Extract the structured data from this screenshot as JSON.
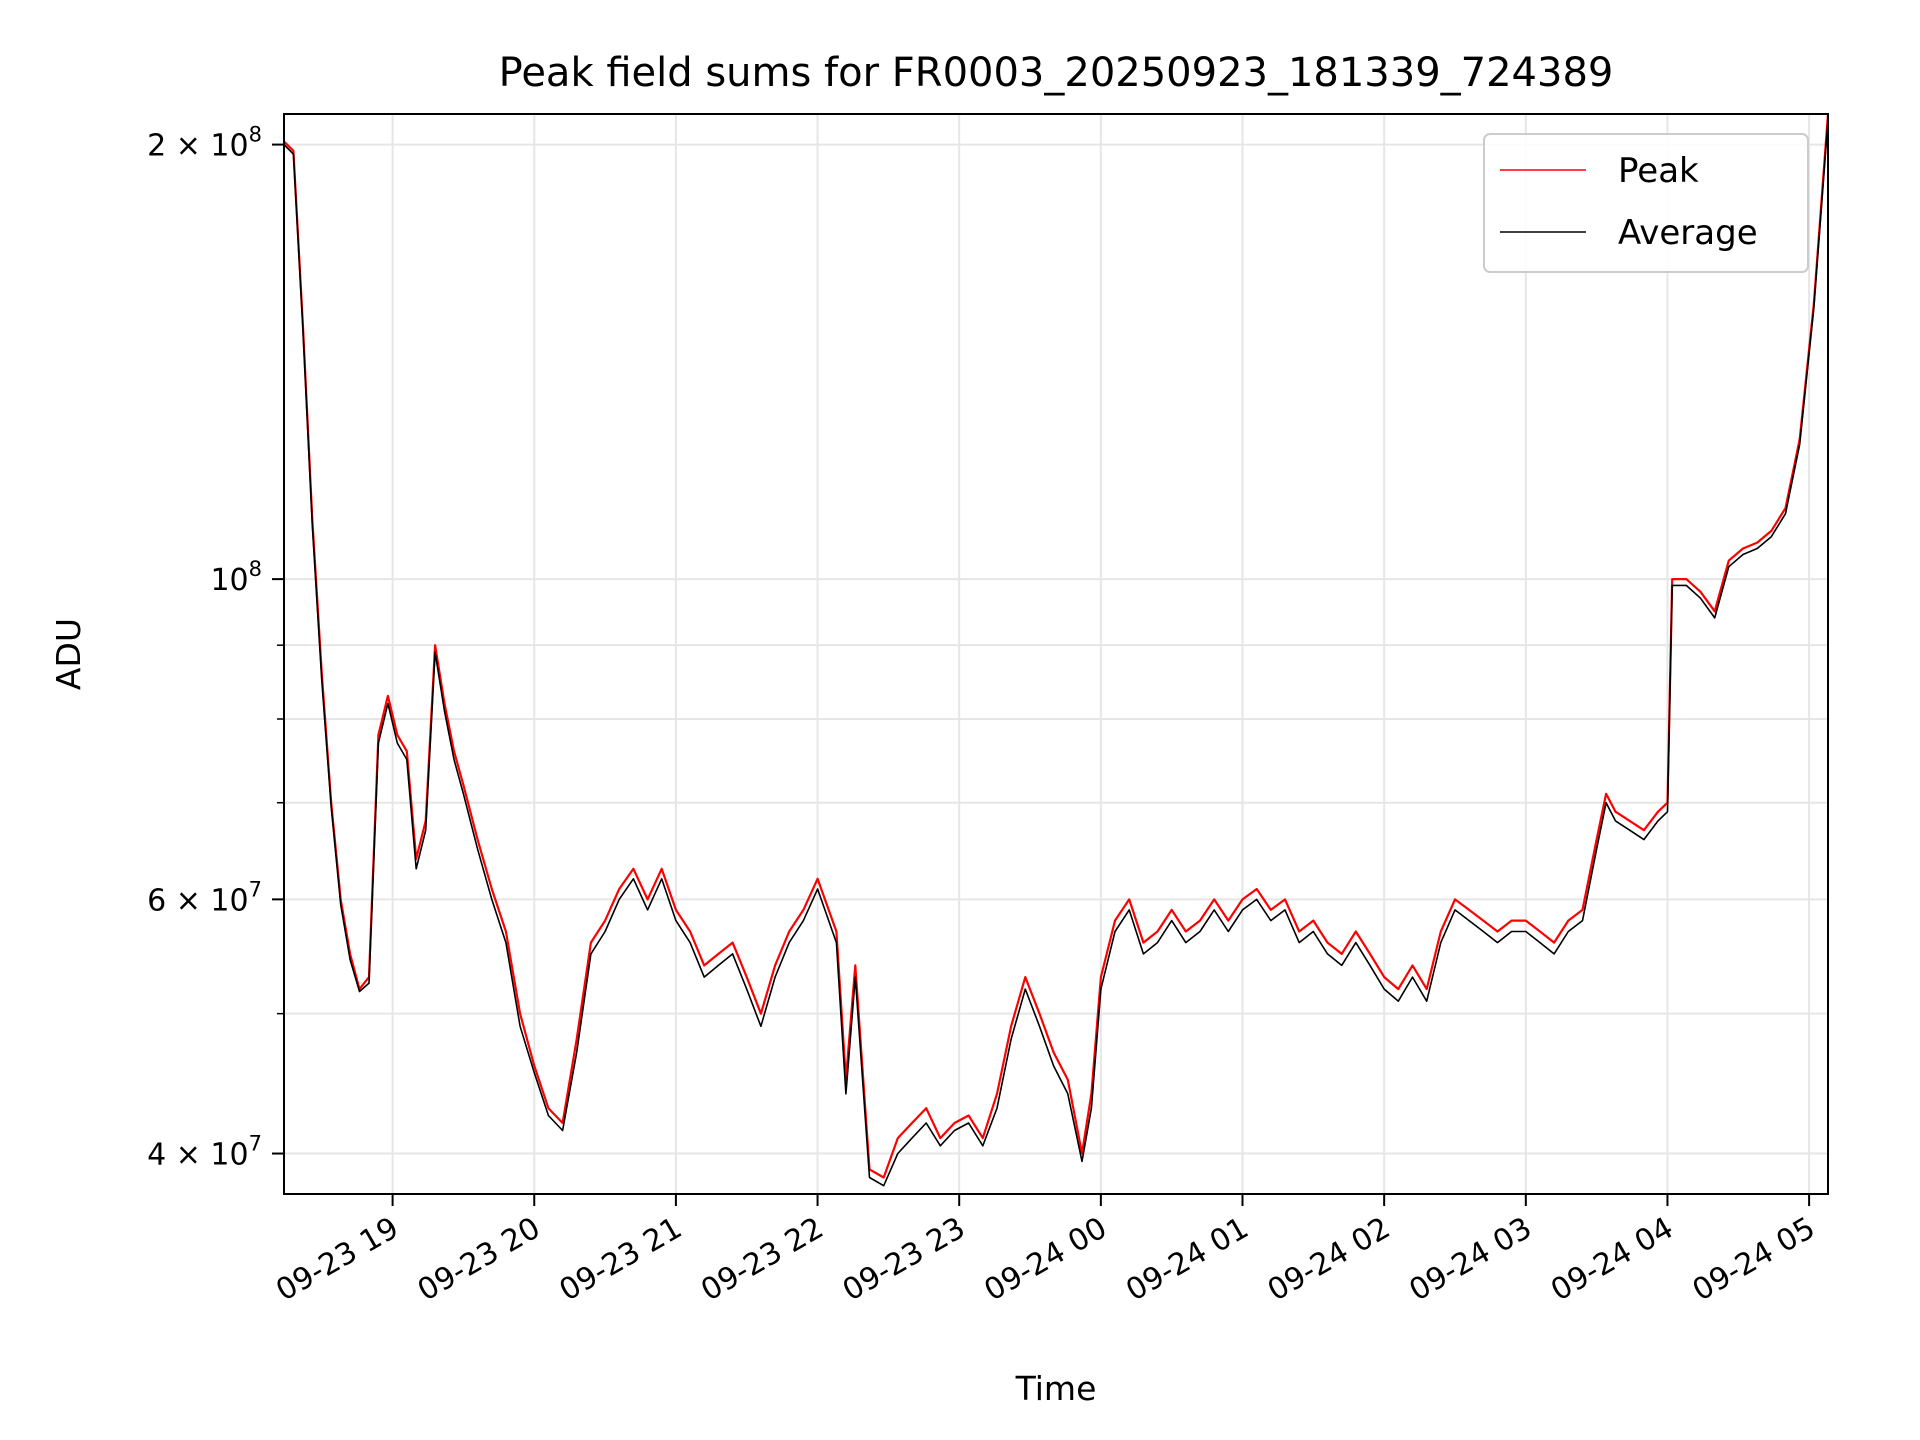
{
  "chart_data": {
    "type": "line",
    "title": "Peak field sums for FR0003_20250923_181339_724389",
    "xlabel": "Time",
    "ylabel": "ADU",
    "yscale": "log",
    "ylim": [
      37500000,
      210000000
    ],
    "xlim": [
      "2025-09-23 18:14",
      "2025-09-24 05:08"
    ],
    "grid": true,
    "legend_position": "top-right",
    "x_ticks": [
      "09-23 19",
      "09-23 20",
      "09-23 21",
      "09-23 22",
      "09-23 23",
      "09-24 00",
      "09-24 01",
      "09-24 02",
      "09-24 03",
      "09-24 04",
      "09-24 05"
    ],
    "x_tick_values": [
      "2025-09-23 19:00",
      "2025-09-23 20:00",
      "2025-09-23 21:00",
      "2025-09-23 22:00",
      "2025-09-23 23:00",
      "2025-09-24 00:00",
      "2025-09-24 01:00",
      "2025-09-24 02:00",
      "2025-09-24 03:00",
      "2025-09-24 04:00",
      "2025-09-24 05:00"
    ],
    "y_major_ticks": [
      {
        "value": 40000000,
        "mantissa": "4",
        "exponent": "7"
      },
      {
        "value": 60000000,
        "mantissa": "6",
        "exponent": "7"
      },
      {
        "value": 100000000,
        "mantissa": "",
        "exponent": "8"
      },
      {
        "value": 200000000,
        "mantissa": "2",
        "exponent": "8"
      }
    ],
    "y_minor_ticks": [
      50000000,
      70000000,
      80000000,
      90000000
    ],
    "series": [
      {
        "name": "Peak",
        "color": "#ff0000",
        "x": [
          "2025-09-23 18:14",
          "2025-09-23 18:18",
          "2025-09-23 18:22",
          "2025-09-23 18:26",
          "2025-09-23 18:30",
          "2025-09-23 18:34",
          "2025-09-23 18:38",
          "2025-09-23 18:42",
          "2025-09-23 18:46",
          "2025-09-23 18:50",
          "2025-09-23 18:54",
          "2025-09-23 18:58",
          "2025-09-23 19:02",
          "2025-09-23 19:06",
          "2025-09-23 19:10",
          "2025-09-23 19:14",
          "2025-09-23 19:18",
          "2025-09-23 19:22",
          "2025-09-23 19:26",
          "2025-09-23 19:30",
          "2025-09-23 19:36",
          "2025-09-23 19:42",
          "2025-09-23 19:48",
          "2025-09-23 19:54",
          "2025-09-23 20:00",
          "2025-09-23 20:06",
          "2025-09-23 20:12",
          "2025-09-23 20:18",
          "2025-09-23 20:24",
          "2025-09-23 20:30",
          "2025-09-23 20:36",
          "2025-09-23 20:42",
          "2025-09-23 20:48",
          "2025-09-23 20:54",
          "2025-09-23 21:00",
          "2025-09-23 21:06",
          "2025-09-23 21:12",
          "2025-09-23 21:18",
          "2025-09-23 21:24",
          "2025-09-23 21:30",
          "2025-09-23 21:36",
          "2025-09-23 21:42",
          "2025-09-23 21:48",
          "2025-09-23 21:54",
          "2025-09-23 22:00",
          "2025-09-23 22:08",
          "2025-09-23 22:12",
          "2025-09-23 22:16",
          "2025-09-23 22:22",
          "2025-09-23 22:28",
          "2025-09-23 22:34",
          "2025-09-23 22:40",
          "2025-09-23 22:46",
          "2025-09-23 22:52",
          "2025-09-23 22:58",
          "2025-09-23 23:04",
          "2025-09-23 23:10",
          "2025-09-23 23:16",
          "2025-09-23 23:22",
          "2025-09-23 23:28",
          "2025-09-23 23:34",
          "2025-09-23 23:40",
          "2025-09-23 23:46",
          "2025-09-23 23:52",
          "2025-09-23 23:56",
          "2025-09-24 00:00",
          "2025-09-24 00:06",
          "2025-09-24 00:12",
          "2025-09-24 00:18",
          "2025-09-24 00:24",
          "2025-09-24 00:30",
          "2025-09-24 00:36",
          "2025-09-24 00:42",
          "2025-09-24 00:48",
          "2025-09-24 00:54",
          "2025-09-24 01:00",
          "2025-09-24 01:06",
          "2025-09-24 01:12",
          "2025-09-24 01:18",
          "2025-09-24 01:24",
          "2025-09-24 01:30",
          "2025-09-24 01:36",
          "2025-09-24 01:42",
          "2025-09-24 01:48",
          "2025-09-24 01:54",
          "2025-09-24 02:00",
          "2025-09-24 02:06",
          "2025-09-24 02:12",
          "2025-09-24 02:18",
          "2025-09-24 02:24",
          "2025-09-24 02:30",
          "2025-09-24 02:36",
          "2025-09-24 02:42",
          "2025-09-24 02:48",
          "2025-09-24 02:54",
          "2025-09-24 03:00",
          "2025-09-24 03:06",
          "2025-09-24 03:12",
          "2025-09-24 03:18",
          "2025-09-24 03:24",
          "2025-09-24 03:30",
          "2025-09-24 03:34",
          "2025-09-24 03:38",
          "2025-09-24 03:44",
          "2025-09-24 03:50",
          "2025-09-24 03:56",
          "2025-09-24 04:00",
          "2025-09-24 04:02",
          "2025-09-24 04:08",
          "2025-09-24 04:14",
          "2025-09-24 04:20",
          "2025-09-24 04:26",
          "2025-09-24 04:32",
          "2025-09-24 04:38",
          "2025-09-24 04:44",
          "2025-09-24 04:50",
          "2025-09-24 04:56",
          "2025-09-24 05:02",
          "2025-09-24 05:08"
        ],
        "values": [
          201000000,
          198000000,
          150000000,
          110000000,
          86000000,
          70000000,
          60000000,
          55000000,
          52000000,
          53000000,
          78000000,
          83000000,
          78000000,
          76000000,
          64000000,
          68000000,
          90000000,
          82000000,
          76000000,
          72000000,
          66000000,
          61000000,
          57000000,
          50000000,
          46000000,
          43000000,
          42000000,
          48000000,
          56000000,
          58000000,
          61000000,
          63000000,
          60000000,
          63000000,
          59000000,
          57000000,
          54000000,
          55000000,
          56000000,
          53000000,
          50000000,
          54000000,
          57000000,
          59000000,
          62000000,
          57000000,
          45000000,
          54000000,
          39000000,
          38500000,
          41000000,
          42000000,
          43000000,
          41000000,
          42000000,
          42500000,
          41000000,
          44000000,
          49000000,
          53000000,
          50000000,
          47000000,
          45000000,
          40000000,
          44000000,
          53000000,
          58000000,
          60000000,
          56000000,
          57000000,
          59000000,
          57000000,
          58000000,
          60000000,
          58000000,
          60000000,
          61000000,
          59000000,
          60000000,
          57000000,
          58000000,
          56000000,
          55000000,
          57000000,
          55000000,
          53000000,
          52000000,
          54000000,
          52000000,
          57000000,
          60000000,
          59000000,
          58000000,
          57000000,
          58000000,
          58000000,
          57000000,
          56000000,
          58000000,
          59000000,
          66000000,
          71000000,
          69000000,
          68000000,
          67000000,
          69000000,
          70000000,
          100000000,
          100000000,
          98000000,
          95000000,
          103000000,
          105000000,
          106000000,
          108000000,
          112000000,
          125000000,
          155000000,
          210000000
        ]
      },
      {
        "name": "Average",
        "color": "#000000",
        "x": [
          "2025-09-23 18:14",
          "2025-09-23 18:18",
          "2025-09-23 18:22",
          "2025-09-23 18:26",
          "2025-09-23 18:30",
          "2025-09-23 18:34",
          "2025-09-23 18:38",
          "2025-09-23 18:42",
          "2025-09-23 18:46",
          "2025-09-23 18:50",
          "2025-09-23 18:54",
          "2025-09-23 18:58",
          "2025-09-23 19:02",
          "2025-09-23 19:06",
          "2025-09-23 19:10",
          "2025-09-23 19:14",
          "2025-09-23 19:18",
          "2025-09-23 19:22",
          "2025-09-23 19:26",
          "2025-09-23 19:30",
          "2025-09-23 19:36",
          "2025-09-23 19:42",
          "2025-09-23 19:48",
          "2025-09-23 19:54",
          "2025-09-23 20:00",
          "2025-09-23 20:06",
          "2025-09-23 20:12",
          "2025-09-23 20:18",
          "2025-09-23 20:24",
          "2025-09-23 20:30",
          "2025-09-23 20:36",
          "2025-09-23 20:42",
          "2025-09-23 20:48",
          "2025-09-23 20:54",
          "2025-09-23 21:00",
          "2025-09-23 21:06",
          "2025-09-23 21:12",
          "2025-09-23 21:18",
          "2025-09-23 21:24",
          "2025-09-23 21:30",
          "2025-09-23 21:36",
          "2025-09-23 21:42",
          "2025-09-23 21:48",
          "2025-09-23 21:54",
          "2025-09-23 22:00",
          "2025-09-23 22:08",
          "2025-09-23 22:12",
          "2025-09-23 22:16",
          "2025-09-23 22:22",
          "2025-09-23 22:28",
          "2025-09-23 22:34",
          "2025-09-23 22:40",
          "2025-09-23 22:46",
          "2025-09-23 22:52",
          "2025-09-23 22:58",
          "2025-09-23 23:04",
          "2025-09-23 23:10",
          "2025-09-23 23:16",
          "2025-09-23 23:22",
          "2025-09-23 23:28",
          "2025-09-23 23:34",
          "2025-09-23 23:40",
          "2025-09-23 23:46",
          "2025-09-23 23:52",
          "2025-09-23 23:56",
          "2025-09-24 00:00",
          "2025-09-24 00:06",
          "2025-09-24 00:12",
          "2025-09-24 00:18",
          "2025-09-24 00:24",
          "2025-09-24 00:30",
          "2025-09-24 00:36",
          "2025-09-24 00:42",
          "2025-09-24 00:48",
          "2025-09-24 00:54",
          "2025-09-24 01:00",
          "2025-09-24 01:06",
          "2025-09-24 01:12",
          "2025-09-24 01:18",
          "2025-09-24 01:24",
          "2025-09-24 01:30",
          "2025-09-24 01:36",
          "2025-09-24 01:42",
          "2025-09-24 01:48",
          "2025-09-24 01:54",
          "2025-09-24 02:00",
          "2025-09-24 02:06",
          "2025-09-24 02:12",
          "2025-09-24 02:18",
          "2025-09-24 02:24",
          "2025-09-24 02:30",
          "2025-09-24 02:36",
          "2025-09-24 02:42",
          "2025-09-24 02:48",
          "2025-09-24 02:54",
          "2025-09-24 03:00",
          "2025-09-24 03:06",
          "2025-09-24 03:12",
          "2025-09-24 03:18",
          "2025-09-24 03:24",
          "2025-09-24 03:30",
          "2025-09-24 03:34",
          "2025-09-24 03:38",
          "2025-09-24 03:44",
          "2025-09-24 03:50",
          "2025-09-24 03:56",
          "2025-09-24 04:00",
          "2025-09-24 04:02",
          "2025-09-24 04:08",
          "2025-09-24 04:14",
          "2025-09-24 04:20",
          "2025-09-24 04:26",
          "2025-09-24 04:32",
          "2025-09-24 04:38",
          "2025-09-24 04:44",
          "2025-09-24 04:50",
          "2025-09-24 04:56",
          "2025-09-24 05:02",
          "2025-09-24 05:08"
        ],
        "values": [
          200000000,
          197000000,
          149000000,
          109000000,
          85000000,
          69500000,
          59500000,
          54500000,
          51800000,
          52500000,
          77000000,
          82000000,
          77000000,
          75000000,
          63000000,
          67000000,
          89000000,
          81000000,
          75000000,
          71000000,
          65000000,
          60000000,
          56000000,
          49000000,
          45500000,
          42500000,
          41500000,
          47000000,
          55000000,
          57000000,
          60000000,
          62000000,
          59000000,
          62000000,
          58000000,
          56000000,
          53000000,
          54000000,
          55000000,
          52000000,
          49000000,
          53000000,
          56000000,
          58000000,
          61000000,
          56000000,
          44000000,
          53000000,
          38500000,
          38000000,
          40000000,
          41000000,
          42000000,
          40500000,
          41500000,
          42000000,
          40500000,
          43000000,
          48000000,
          52000000,
          49000000,
          46000000,
          44000000,
          39500000,
          43000000,
          52000000,
          57000000,
          59000000,
          55000000,
          56000000,
          58000000,
          56000000,
          57000000,
          59000000,
          57000000,
          59000000,
          60000000,
          58000000,
          59000000,
          56000000,
          57000000,
          55000000,
          54000000,
          56000000,
          54000000,
          52000000,
          51000000,
          53000000,
          51000000,
          56000000,
          59000000,
          58000000,
          57000000,
          56000000,
          57000000,
          57000000,
          56000000,
          55000000,
          57000000,
          58000000,
          65000000,
          70000000,
          68000000,
          67000000,
          66000000,
          68000000,
          69000000,
          99000000,
          99000000,
          97000000,
          94000000,
          102000000,
          104000000,
          105000000,
          107000000,
          111000000,
          124000000,
          154000000,
          208000000
        ]
      }
    ]
  }
}
